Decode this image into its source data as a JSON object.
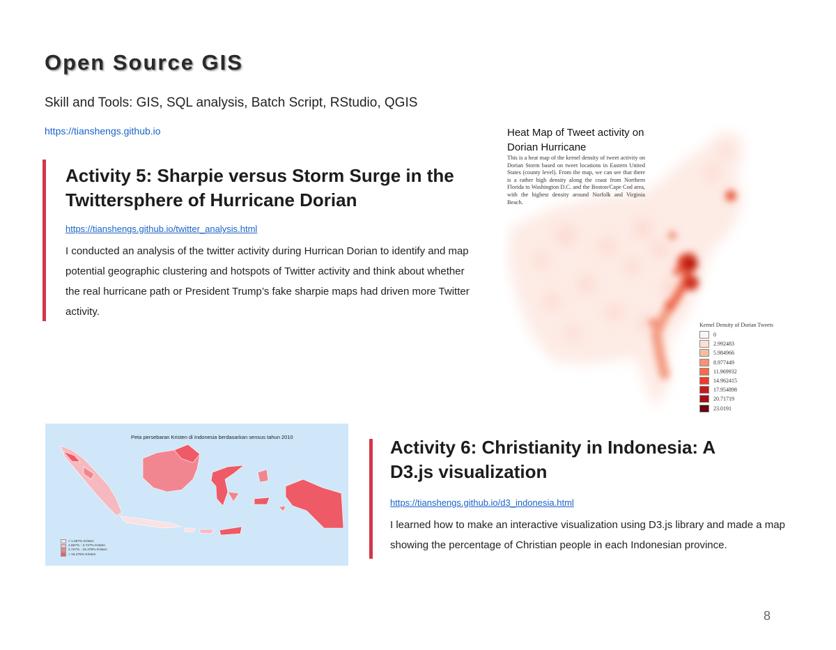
{
  "page": {
    "title": "Open Source GIS",
    "skills": "Skill and Tools: GIS, SQL analysis, Batch Script, RStudio, QGIS",
    "site_link": "https://tianshengs.github.io",
    "page_number": "8"
  },
  "activity5": {
    "title": "Activity 5: Sharpie versus Storm Surge in the Twittersphere of Hurricane Dorian",
    "link": "https://tianshengs.github.io/twitter_analysis.html",
    "description": "I conducted an analysis of the twitter activity during Hurrican Dorian to identify and map potential geographic clustering and hotspots of Twitter activity and think about whether the real hurricane path or President Trump’s fake sharpie maps had driven more Twitter activity."
  },
  "heatmap": {
    "title": "Heat Map of Tweet activity on Dorian Hurricane",
    "note": "This is a heat map of the kernel density of tweet activity on Dorian Storm based on tweet locations in Eastern United States (county level). From the map, we can see that there is a rather high density along the coast from Northern Florida to Washington D.C. and the Boston/Cape Cod area, with the highest density around Norfolk and Virginia Beach.",
    "legend_title": "Kernel Density of Dorian Tweets",
    "legend": [
      {
        "label": "0",
        "color": "#fff5f0"
      },
      {
        "label": "2.992483",
        "color": "#fde0d2"
      },
      {
        "label": "5.984966",
        "color": "#fcbba1"
      },
      {
        "label": "8.977449",
        "color": "#fc9272"
      },
      {
        "label": "11.969932",
        "color": "#fb6a4a"
      },
      {
        "label": "14.962415",
        "color": "#ef3b2c"
      },
      {
        "label": "17.954898",
        "color": "#cb181d"
      },
      {
        "label": "20.71719",
        "color": "#a50f15"
      },
      {
        "label": "23.0191",
        "color": "#67000d"
      }
    ]
  },
  "indonesia_map": {
    "title": "Peta persebaran Kristen di Indonesia berdasarkan sensus tahun 2010",
    "legend": [
      {
        "label": "< 1.667% Kristen",
        "color": "#fbe1e4"
      },
      {
        "label": "1.667% - 2.727% Kristen",
        "color": "#f7b9c0"
      },
      {
        "label": "2.727% - 16.478% Kristen",
        "color": "#f28690"
      },
      {
        "label": "> 16.478% Kristen",
        "color": "#ee5a66"
      }
    ]
  },
  "activity6": {
    "title": "Activity 6: Christianity in Indonesia: A D3.js visualization",
    "link": "https://tianshengs.github.io/d3_indonesia.html",
    "description": "I learned how to make an interactive visualization using D3.js library and made a map showing the percentage of Christian people in each Indonesian province."
  }
}
